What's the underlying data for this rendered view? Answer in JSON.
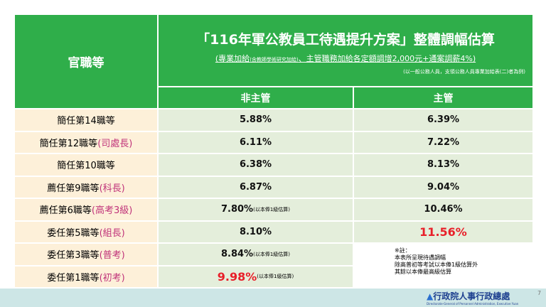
{
  "header": {
    "rank_label": "官職等",
    "title": "「116年軍公教員工待遇提升方案」整體調幅估算",
    "subtitle": [
      "(專業加給",
      "(含教師學術研究加給)",
      "、主管職務加給各定額調增2,000元+通案調薪4%)"
    ],
    "note": "(以一般公務人員，支領公務人員專業加給表(二)者為例)"
  },
  "columns": [
    "非主管",
    "主管"
  ],
  "rows": [
    {
      "rank": "簡任第14職等",
      "non_supervisor": "5.88%",
      "supervisor": "6.39%"
    },
    {
      "rank": "簡任第12職等",
      "position": "(司處長)",
      "non_supervisor": "6.11%",
      "supervisor": "7.22%"
    },
    {
      "rank": "簡任第10職等",
      "non_supervisor": "6.38%",
      "supervisor": "8.13%"
    },
    {
      "rank": "薦任第9職等",
      "position": "(科長)",
      "non_supervisor": "6.87%",
      "supervisor": "9.04%"
    },
    {
      "rank": "薦任第6職等",
      "position": "(高考3級)",
      "non_supervisor": "7.80%",
      "non_supervisor_note": "(以本俸1級估算)",
      "supervisor": "10.46%"
    },
    {
      "rank": "委任第5職等",
      "position": "(組長)",
      "non_supervisor": "8.10%",
      "supervisor": "11.56%",
      "supervisor_color": "#e8202a"
    },
    {
      "rank": "委任第3職等",
      "position": "(普考)",
      "non_supervisor": "8.84%",
      "non_supervisor_note": "(以本俸1級估算)"
    },
    {
      "rank": "委任第1職等",
      "position": "(初考)",
      "non_supervisor": "9.98%",
      "non_supervisor_note": "(以本俸1級估算)",
      "non_supervisor_color": "#e8202a"
    }
  ],
  "footnote": [
    "※註：",
    "本表所呈現待遇調幅",
    "除高普初等考試以本俸1級估算外",
    "其餘以本俸最高級估算"
  ],
  "footer": {
    "org": "行政院人事行政總處",
    "org_en": "Directorate-General of Personnel Administration, Executive Yuan",
    "page": "7"
  }
}
